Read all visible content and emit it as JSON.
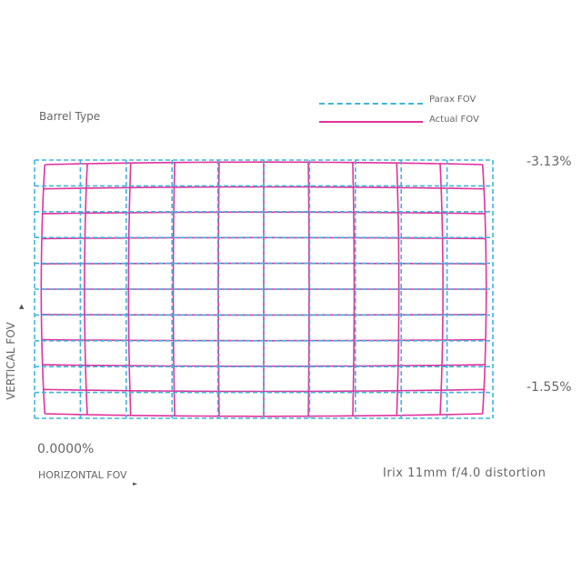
{
  "chart_data": {
    "type": "line",
    "title": "Barrel Type",
    "caption": "Irix 11mm f/4.0 distortion",
    "xlabel": "HORIZONTAL FOV",
    "ylabel": "VERTICAL FOV",
    "origin_label": "0.0000%",
    "annotations": {
      "corner_distortion": "-3.13%",
      "edge_distortion": "-1.55%"
    },
    "grid_divisions": {
      "columns": 10,
      "rows": 10
    },
    "series": [
      {
        "name": "Parax FOV",
        "style": "dashed",
        "color": "#3db5df"
      },
      {
        "name": "Actual FOV",
        "style": "solid",
        "color": "#e0339b"
      }
    ]
  }
}
